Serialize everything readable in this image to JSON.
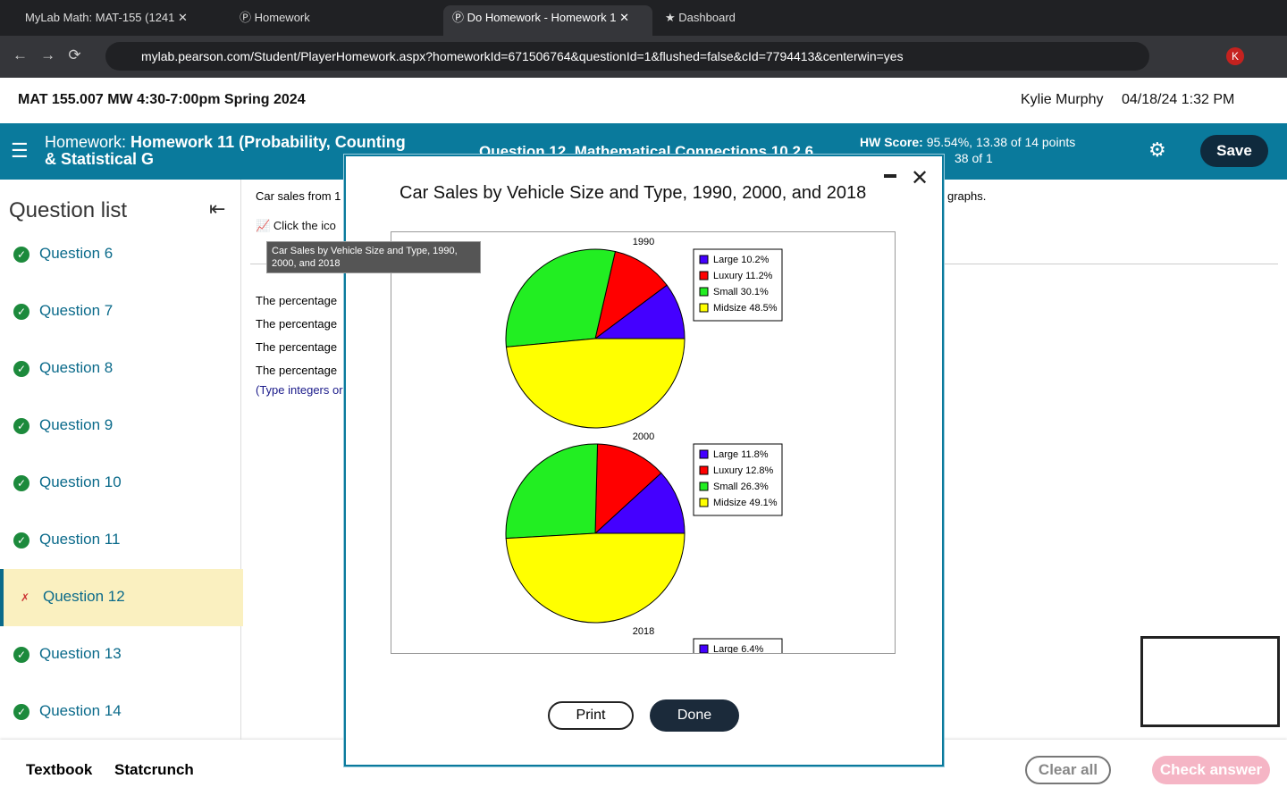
{
  "browser": {
    "tabs": [
      "MyLab Math: MAT-155 (1241",
      "Homework",
      "Do Homework - Homework 1",
      "Dashboard"
    ],
    "url": "mylab.pearson.com/Student/PlayerHomework.aspx?homeworkId=671506764&questionId=1&flushed=false&cId=7794413&centerwin=yes",
    "profile": "K"
  },
  "header": {
    "course": "MAT 155.007 MW 4:30-7:00pm Spring 2024",
    "user": "Kylie Murphy",
    "datetime": "04/18/24 1:32 PM"
  },
  "homework_bar": {
    "label": "Homework:",
    "title": "Homework 11 (Probability, Counting & Statistical G",
    "question": "Question 12, Mathematical Connections 10.2.6",
    "score_label": "HW Score:",
    "score": "95.54%, 13.38 of 14 points",
    "points": "38 of 1",
    "save": "Save"
  },
  "sidebar": {
    "title": "Question list",
    "questions": [
      "Question 6",
      "Question 7",
      "Question 8",
      "Question 9",
      "Question 10",
      "Question 11",
      "Question 12",
      "Question 13",
      "Question 14"
    ],
    "current": "Question 12"
  },
  "question": {
    "intro": "Car sales from 1",
    "suffix": "graphs.",
    "icon_hint": "Click the ico",
    "lines": [
      "The percentage",
      "The percentage",
      "The percentage",
      "The percentage"
    ],
    "instruction": "(Type integers or"
  },
  "tooltip": "Car Sales by Vehicle Size and Type, 1990, 2000, and 2018",
  "dialog": {
    "title": "Car Sales by Vehicle Size and Type, 1990, 2000, and 2018",
    "print": "Print",
    "done": "Done"
  },
  "chart_data": [
    {
      "type": "pie",
      "title": "1990",
      "categories": [
        "Large",
        "Luxury",
        "Small",
        "Midsize"
      ],
      "values": [
        10.2,
        11.2,
        30.1,
        48.5
      ],
      "value_labels": [
        "10.2%",
        "11.2%",
        "30.1%",
        "48.5%"
      ],
      "colors": [
        "#4400ff",
        "#ff0000",
        "#22ee22",
        "#ffff00"
      ]
    },
    {
      "type": "pie",
      "title": "2000",
      "categories": [
        "Large",
        "Luxury",
        "Small",
        "Midsize"
      ],
      "values": [
        11.8,
        12.8,
        26.3,
        49.1
      ],
      "value_labels": [
        "11.8%",
        "12.8%",
        "26.3%",
        "49.1%"
      ],
      "colors": [
        "#4400ff",
        "#ff0000",
        "#22ee22",
        "#ffff00"
      ]
    },
    {
      "type": "pie",
      "title": "2018",
      "categories": [
        "Large"
      ],
      "values": [
        6.4
      ],
      "value_labels": [
        "6.4%"
      ],
      "colors": [
        "#4400ff"
      ]
    }
  ],
  "footer": {
    "links": [
      "Textbook",
      "Statcrunch"
    ],
    "clear": "Clear all",
    "check": "Check answer"
  }
}
